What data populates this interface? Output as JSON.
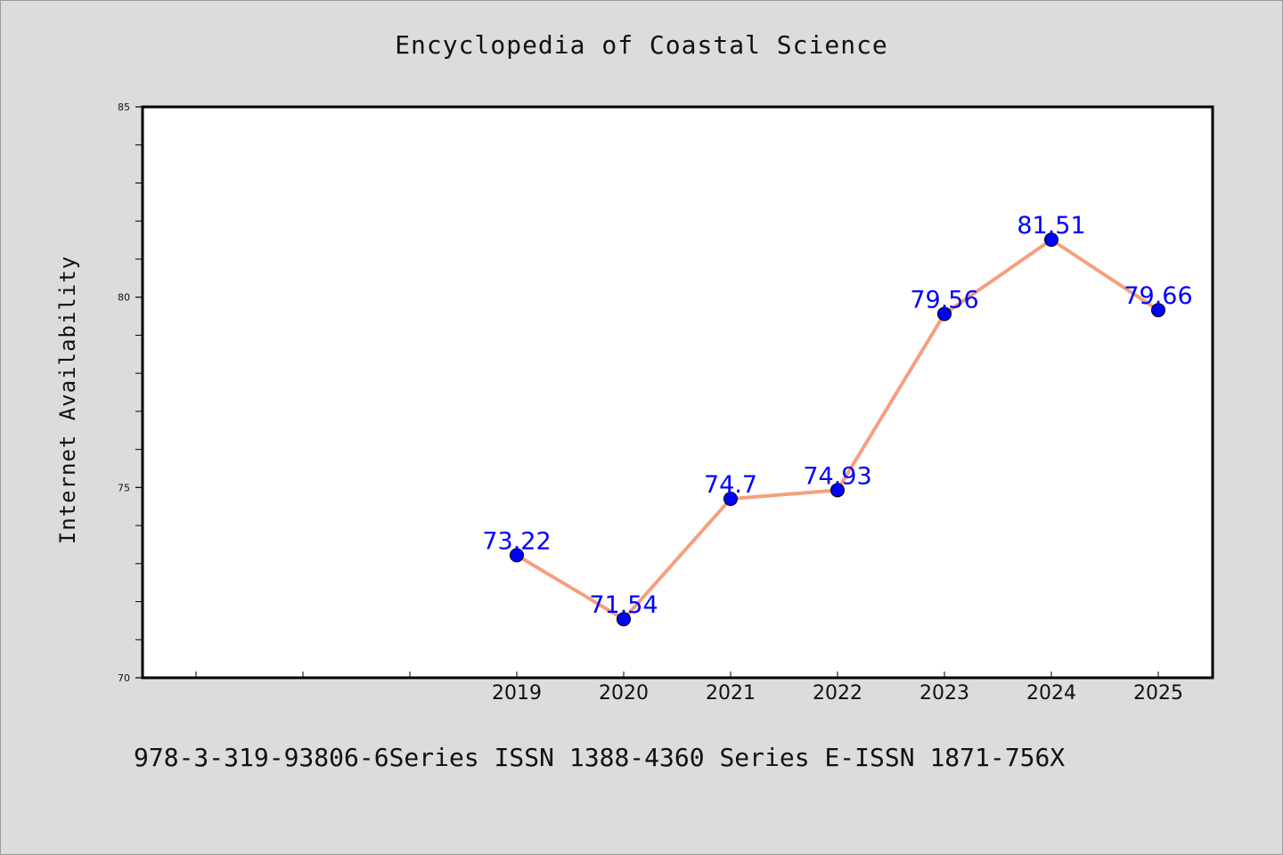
{
  "chart_data": {
    "type": "line",
    "title": "Encyclopedia of Coastal Science",
    "xlabel": "",
    "ylabel": "Internet Availability",
    "categories": [
      "2019",
      "2020",
      "2021",
      "2022",
      "2023",
      "2024",
      "2025"
    ],
    "x_slot_count": 10,
    "values": [
      73.22,
      71.54,
      74.7,
      74.93,
      79.56,
      81.51,
      79.66
    ],
    "data_labels": [
      "73.22",
      "71.54",
      "74.7",
      "74.93",
      "79.56",
      "81.51",
      "79.66"
    ],
    "ylim": [
      70,
      85
    ],
    "y_ticks": [
      "70",
      "75",
      "80",
      "85"
    ],
    "y_minor_step": 1,
    "grid": false,
    "line_color": "#f4a07e",
    "marker_color": "#0000ff",
    "label_color": "#0000ff",
    "plot_background": "#ffffff",
    "page_background": "#dcdcdc"
  },
  "footer": {
    "text": "978-3-319-93806-6Series ISSN 1388-4360 Series E-ISSN 1871-756X"
  }
}
